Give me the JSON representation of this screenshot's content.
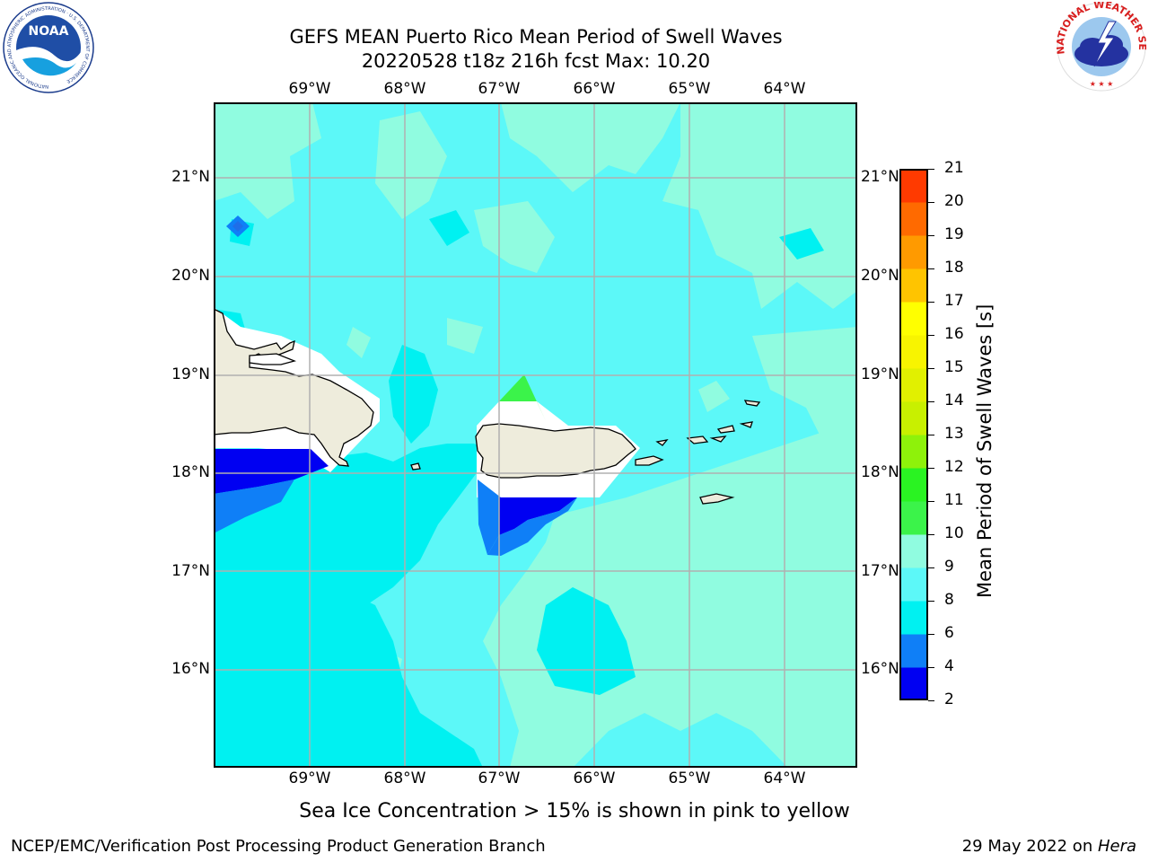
{
  "header": {
    "title_line1": "GEFS MEAN Puerto Rico Mean Period of Swell Waves",
    "title_line2": "20220528 t18z 216h fcst   Max: 10.20"
  },
  "logos": {
    "noaa_text": "NOAA",
    "noaa_ring_text": "NATIONAL OCEANIC AND ATMOSPHERIC ADMINISTRATION · U.S. DEPARTMENT OF COMMERCE",
    "nws_ring_text": "NATIONAL WEATHER SERVICE"
  },
  "map": {
    "lon_labels": [
      "69°W",
      "68°W",
      "67°W",
      "66°W",
      "65°W",
      "64°W"
    ],
    "lat_labels": [
      "21°N",
      "20°N",
      "19°N",
      "18°N",
      "17°N",
      "16°N"
    ],
    "colors": {
      "land": "#eeecdc",
      "c2_4": "#0000f2",
      "c4_6": "#0f7ff7",
      "c6_8": "#00f1f1",
      "c8_9": "#5cf8f8",
      "c9_10": "#90fce0",
      "c10_11": "#3bf34a"
    }
  },
  "colorbar": {
    "label": "Mean Period of Swell Waves [s]",
    "ticks": [
      "2",
      "4",
      "6",
      "8",
      "9",
      "10",
      "11",
      "12",
      "13",
      "14",
      "15",
      "16",
      "17",
      "18",
      "19",
      "20",
      "21"
    ],
    "colors": [
      "#0000f2",
      "#0f7ff7",
      "#00f1f1",
      "#5cf8f8",
      "#90fce0",
      "#3bf34a",
      "#2af322",
      "#8ef20a",
      "#c8f000",
      "#e1f000",
      "#f8f400",
      "#ffff00",
      "#ffc400",
      "#ff9a00",
      "#ff6a00",
      "#ff3a00",
      "#ff0000"
    ]
  },
  "notes": {
    "ice": "Sea Ice Concentration > 15% is shown in pink to yellow"
  },
  "footer": {
    "left": "NCEP/EMC/Verification Post Processing Product Generation Branch",
    "right_date": "29 May 2022 on ",
    "right_host": "Hera"
  }
}
